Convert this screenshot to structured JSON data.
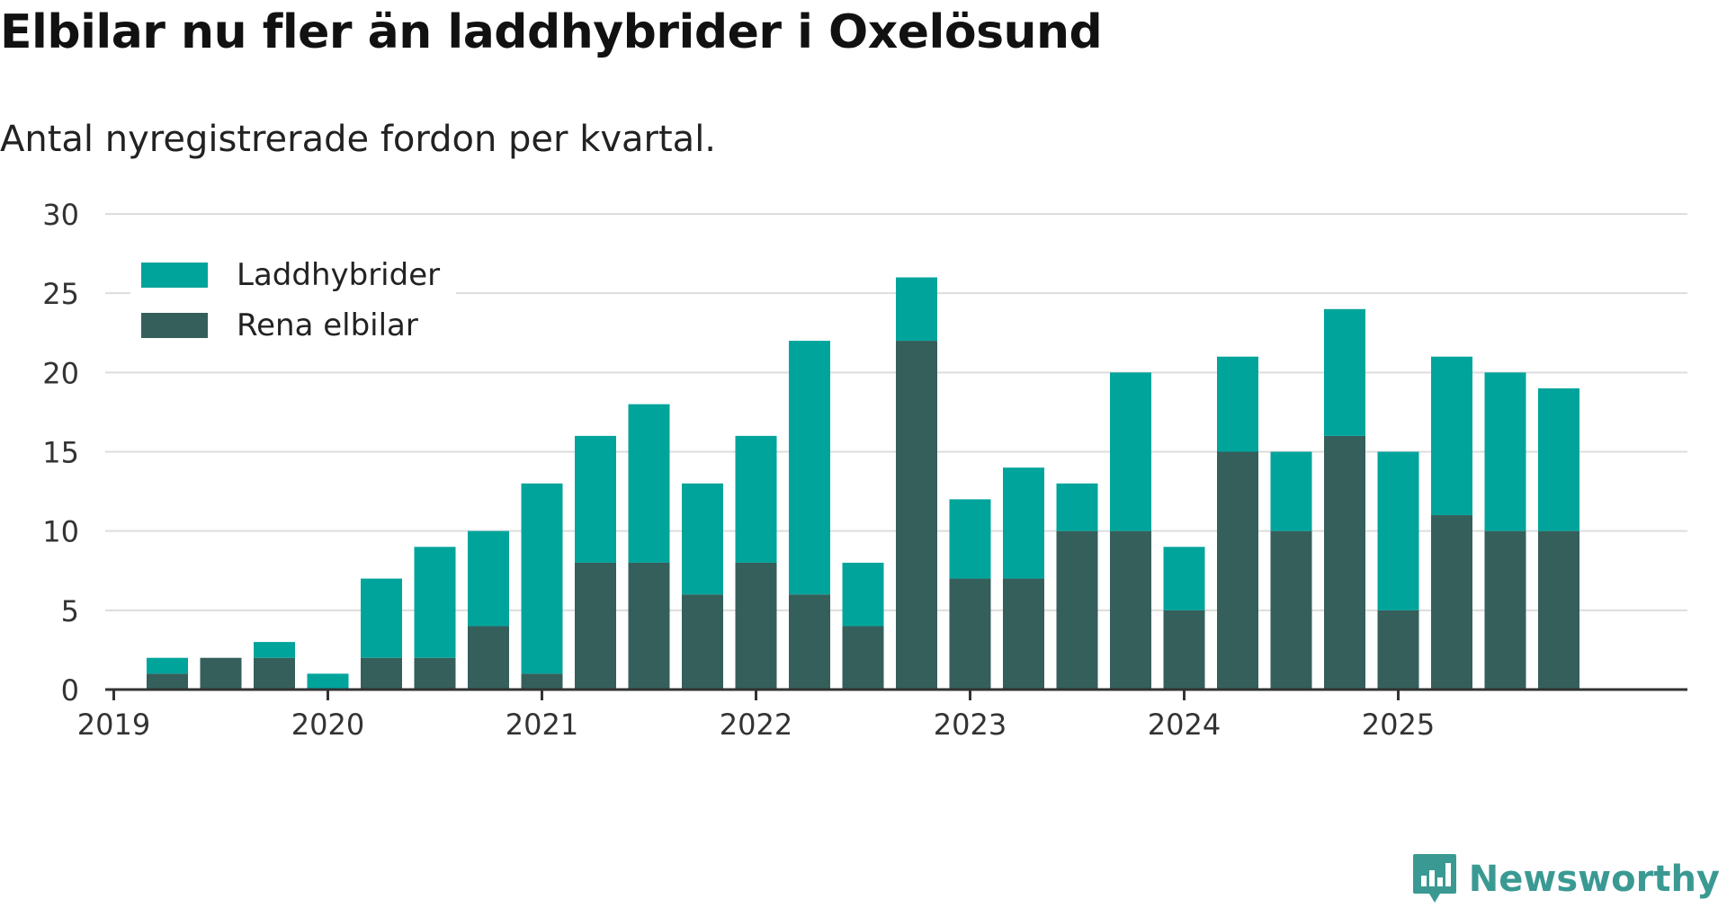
{
  "title": "Elbilar nu fler än laddhybrider i Oxelösund",
  "subtitle": "Antal nyregistrerade fordon per kvartal.",
  "brand": {
    "name": "Newsworthy",
    "color": "#3a9a93",
    "icon": "newsworthy-logo-icon"
  },
  "colors": {
    "laddhybrider": "#00a49b",
    "rena_elbilar": "#355f5b",
    "grid": "#dddddd",
    "axis": "#333333"
  },
  "chart_data": {
    "type": "bar",
    "stacked": true,
    "title": "Elbilar nu fler än laddhybrider i Oxelösund",
    "subtitle": "Antal nyregistrerade fordon per kvartal.",
    "xlabel": "",
    "ylabel": "",
    "ylim": [
      0,
      30
    ],
    "yticks": [
      0,
      5,
      10,
      15,
      20,
      25,
      30
    ],
    "year_ticks": [
      "2019",
      "2020",
      "2021",
      "2022",
      "2023",
      "2024",
      "2025"
    ],
    "grid": true,
    "legend_position": "top-left",
    "categories": [
      "2019 Q1",
      "2019 Q2",
      "2019 Q3",
      "2019 Q4",
      "2020 Q1",
      "2020 Q2",
      "2020 Q3",
      "2020 Q4",
      "2021 Q1",
      "2021 Q2",
      "2021 Q3",
      "2021 Q4",
      "2022 Q1",
      "2022 Q2",
      "2022 Q3",
      "2022 Q4",
      "2023 Q1",
      "2023 Q2",
      "2023 Q3",
      "2023 Q4",
      "2024 Q1",
      "2024 Q2",
      "2024 Q3",
      "2024 Q4",
      "2025 Q1",
      "2025 Q2",
      "2025 Q3",
      "2025 Q4"
    ],
    "series": [
      {
        "name": "Rena elbilar",
        "key": "rena_elbilar",
        "values": [
          1,
          2,
          2,
          0,
          2,
          2,
          4,
          1,
          8,
          8,
          6,
          8,
          6,
          4,
          22,
          7,
          7,
          10,
          10,
          5,
          15,
          10,
          16,
          5,
          11,
          10,
          10,
          0
        ]
      },
      {
        "name": "Laddhybrider",
        "key": "laddhybrider",
        "values": [
          1,
          0,
          1,
          1,
          5,
          7,
          6,
          12,
          8,
          10,
          7,
          8,
          16,
          4,
          4,
          5,
          7,
          3,
          10,
          4,
          6,
          5,
          8,
          10,
          10,
          10,
          9,
          0
        ]
      }
    ]
  },
  "legend": [
    {
      "label": "Laddhybrider",
      "key": "laddhybrider"
    },
    {
      "label": "Rena elbilar",
      "key": "rena_elbilar"
    }
  ]
}
